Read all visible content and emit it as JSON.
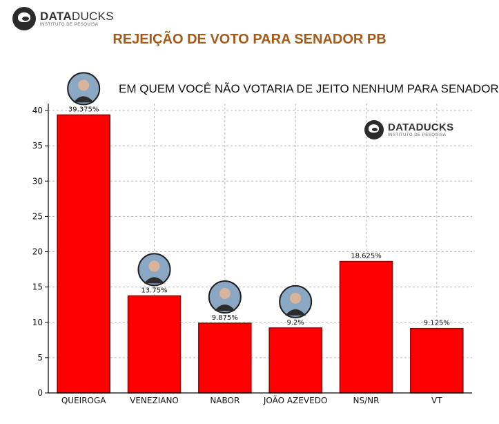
{
  "header": {
    "brand_name_bold": "DATA",
    "brand_name_light": "DUCKS",
    "brand_tagline": "INSTITUTO DE PESQUISA",
    "title": "REJEIÇÃO DE VOTO PARA SENADOR PB"
  },
  "chart_brand": {
    "name": "DATADUCKS",
    "tagline": "INSTITUTO DE PESQUISA"
  },
  "colors": {
    "bar": "#ff0000",
    "bar_edge": "#8b0000",
    "title": "#a65a1a",
    "grid": "#b8b8b8"
  },
  "chart_data": {
    "type": "bar",
    "title": "EM QUEM VOCÊ NÃO VOTARIA DE JEITO NENHUM PARA SENADOR?",
    "categories": [
      "QUEIROGA",
      "VENEZIANO",
      "NABOR",
      "JOÃO AZEVEDO",
      "NS/NR",
      "VT"
    ],
    "values": [
      39.375,
      13.75,
      9.875,
      9.2,
      18.625,
      9.125
    ],
    "value_labels": [
      "39.375%",
      "13.75%",
      "9.875%",
      "9.2%",
      "18.625%",
      "9.125%"
    ],
    "candidate_photos": [
      true,
      true,
      true,
      true,
      false,
      false
    ],
    "ylim": [
      0,
      40
    ],
    "yticks": [
      0,
      5,
      10,
      15,
      20,
      25,
      30,
      35,
      40
    ],
    "grid": true
  }
}
